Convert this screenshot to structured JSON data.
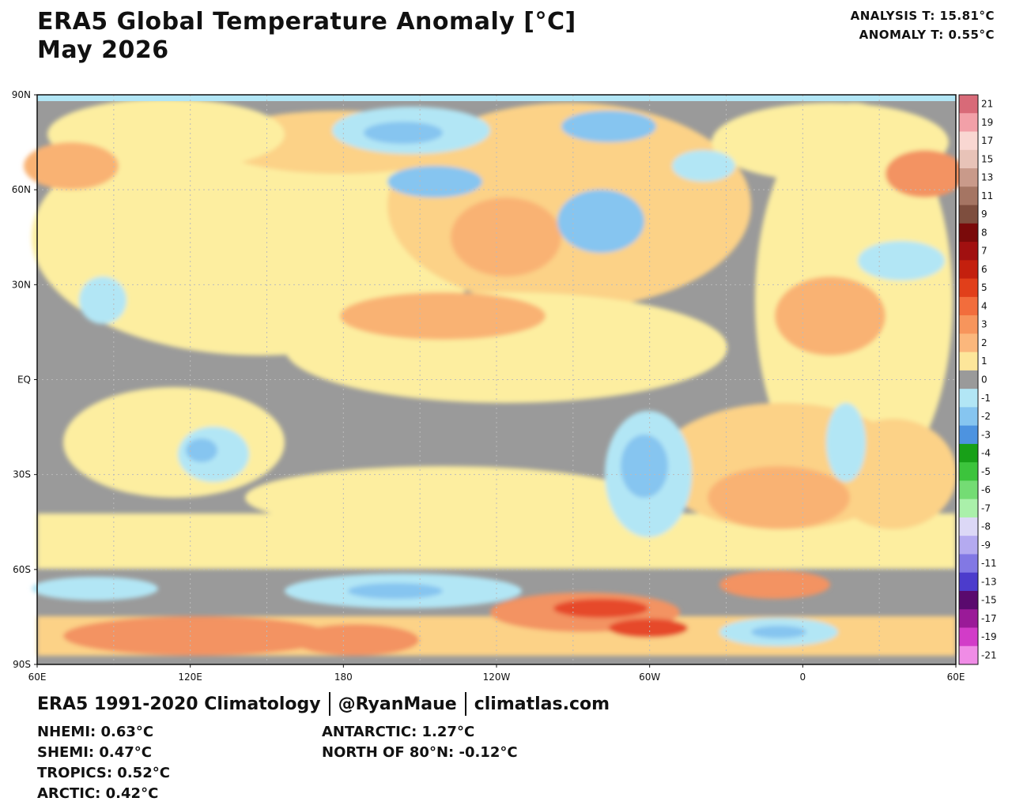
{
  "title": {
    "line1": "ERA5 Global Temperature Anomaly [°C]",
    "line2": "May 2026"
  },
  "header_stats": {
    "analysis": "ANALYSIS T: 15.81°C",
    "anomaly": "ANOMALY T: 0.55°C"
  },
  "map": {
    "lat_labels": [
      "90N",
      "60N",
      "30N",
      "EQ",
      "30S",
      "60S",
      "90S"
    ],
    "lon_labels": [
      "60E",
      "120E",
      "180",
      "120W",
      "60W",
      "0",
      "60E"
    ],
    "colors": {
      "no_anomaly": "#9a9a9a",
      "ocean_warm": "#fdeea0",
      "warm_1": "#fcd287",
      "warm_2": "#f9b273",
      "warm_3": "#f39362",
      "warm_5": "#e64a2c",
      "cool_1": "#b2e6f5",
      "cool_2": "#86c5f0",
      "cool_3": "#4d93e0"
    }
  },
  "legend": {
    "entries": [
      {
        "label": "21",
        "color": "#d86a78"
      },
      {
        "label": "19",
        "color": "#f2a0a8"
      },
      {
        "label": "17",
        "color": "#f9d7d2"
      },
      {
        "label": "15",
        "color": "#e8c3b8"
      },
      {
        "label": "13",
        "color": "#c99a8a"
      },
      {
        "label": "11",
        "color": "#a57563"
      },
      {
        "label": "9",
        "color": "#7e4e3e"
      },
      {
        "label": "8",
        "color": "#7a0a0a"
      },
      {
        "label": "7",
        "color": "#a11010"
      },
      {
        "label": "6",
        "color": "#c4200e"
      },
      {
        "label": "5",
        "color": "#e13f1a"
      },
      {
        "label": "4",
        "color": "#f26d3c"
      },
      {
        "label": "3",
        "color": "#f7955c"
      },
      {
        "label": "2",
        "color": "#fbb77c"
      },
      {
        "label": "1",
        "color": "#fde69a"
      },
      {
        "label": "0",
        "color": "#9a9a9a"
      },
      {
        "label": "-1",
        "color": "#b2e6f5"
      },
      {
        "label": "-2",
        "color": "#86c5f0"
      },
      {
        "label": "-3",
        "color": "#4d93e0"
      },
      {
        "label": "-4",
        "color": "#18a018"
      },
      {
        "label": "-5",
        "color": "#3cc43c"
      },
      {
        "label": "-6",
        "color": "#74dc74"
      },
      {
        "label": "-7",
        "color": "#aaf0aa"
      },
      {
        "label": "-8",
        "color": "#dcd8f6"
      },
      {
        "label": "-9",
        "color": "#b4aaf0"
      },
      {
        "label": "-11",
        "color": "#8278e4"
      },
      {
        "label": "-13",
        "color": "#4c3ccc"
      },
      {
        "label": "-15",
        "color": "#5a0a6e"
      },
      {
        "label": "-17",
        "color": "#9a1a98"
      },
      {
        "label": "-19",
        "color": "#d23cc8"
      },
      {
        "label": "-21",
        "color": "#f08ce6"
      }
    ]
  },
  "footer": {
    "climatology": "ERA5 1991-2020 Climatology",
    "handle": "@RyanMaue",
    "site": "climatlas.com"
  },
  "regions_left": [
    "NHEMI: 0.63°C",
    "SHEMI: 0.47°C",
    "TROPICS: 0.52°C",
    "ARCTIC: 0.42°C"
  ],
  "regions_right": [
    "ANTARCTIC: 1.27°C",
    "NORTH OF 80°N: -0.12°C"
  ]
}
